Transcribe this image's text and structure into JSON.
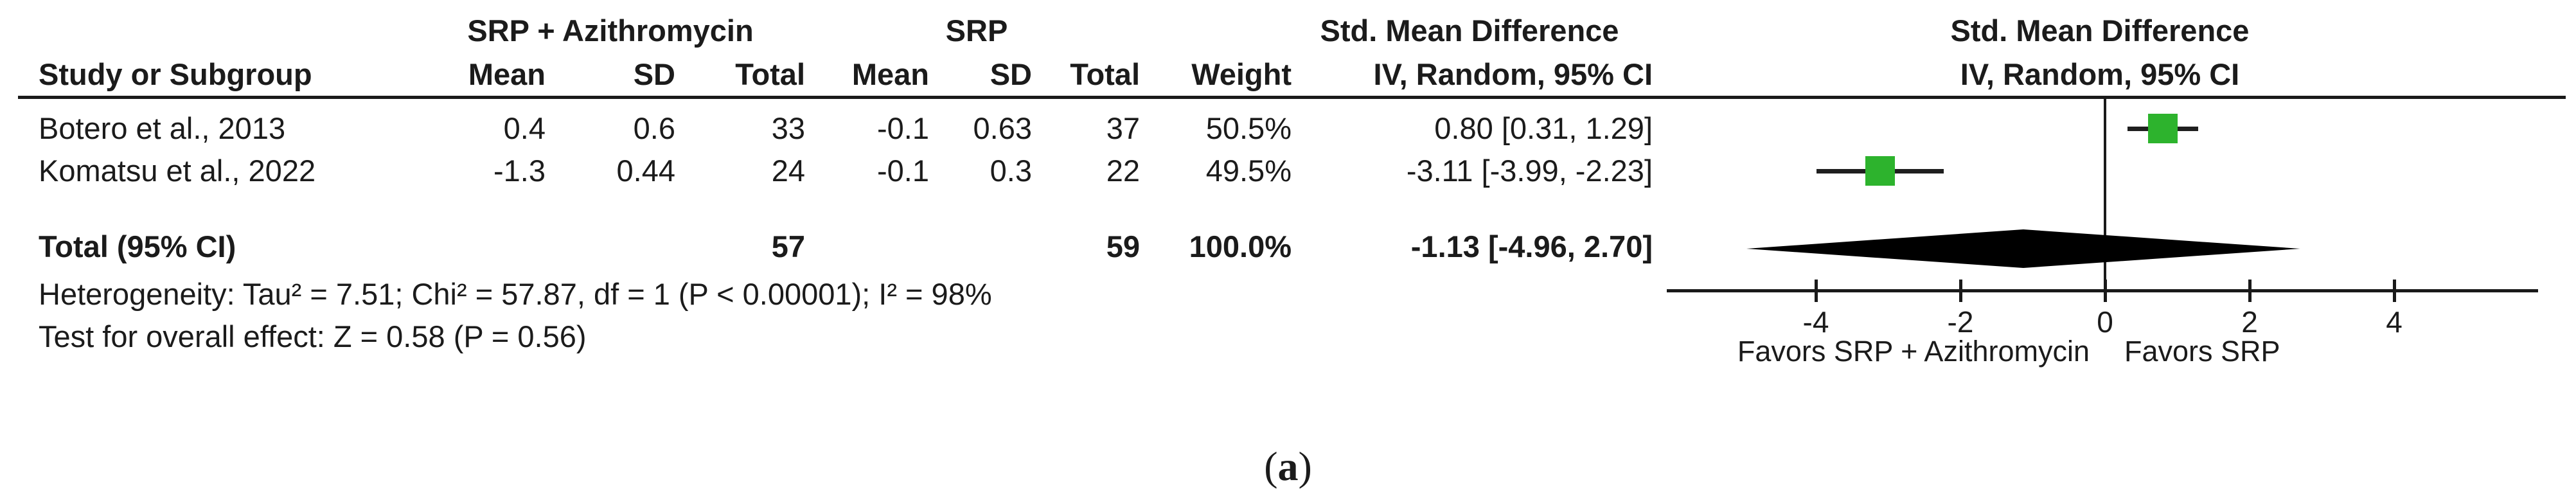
{
  "table": {
    "group_headers": {
      "experimental": "SRP + Azithromycin",
      "control": "SRP",
      "effect": "Std. Mean Difference"
    },
    "columns": {
      "study": "Study or Subgroup",
      "mean1": "Mean",
      "sd1": "SD",
      "total1": "Total",
      "mean2": "Mean",
      "sd2": "SD",
      "total2": "Total",
      "weight": "Weight",
      "ci": "IV, Random, 95% CI"
    },
    "rows": [
      {
        "study": "Botero et al., 2013",
        "mean1": "0.4",
        "sd1": "0.6",
        "total1": "33",
        "mean2": "-0.1",
        "sd2": "0.63",
        "total2": "37",
        "weight": "50.5%",
        "ci": "0.80 [0.31, 1.29]"
      },
      {
        "study": "Komatsu et al., 2022",
        "mean1": "-1.3",
        "sd1": "0.44",
        "total1": "24",
        "mean2": "-0.1",
        "sd2": "0.3",
        "total2": "22",
        "weight": "49.5%",
        "ci": "-3.11 [-3.99, -2.23]"
      }
    ],
    "total_row": {
      "label": "Total (95% CI)",
      "total1": "57",
      "total2": "59",
      "weight": "100.0%",
      "ci": "-1.13 [-4.96, 2.70]"
    },
    "heterogeneity": "Heterogeneity: Tau² = 7.51; Chi² = 57.87, df = 1 (P < 0.00001); I² = 98%",
    "overall_effect": "Test for overall effect: Z = 0.58 (P = 0.56)"
  },
  "plot": {
    "header_line1": "Std. Mean Difference",
    "header_line2": "IV, Random, 95% CI"
  },
  "caption": {
    "open": "(",
    "letter": "a",
    "close": ")"
  },
  "chart_data": {
    "type": "scatter",
    "subtype": "forest-plot",
    "title": "Std. Mean Difference",
    "subtitle": "IV, Random, 95% CI",
    "x_axis": {
      "ticks": [
        -4,
        -2,
        0,
        2,
        4
      ],
      "range": [
        -6,
        6
      ],
      "zero_line": 0,
      "grid": false
    },
    "points": [
      {
        "label": "Botero et al., 2013",
        "smd": 0.8,
        "ci": [
          0.31,
          1.29
        ],
        "weight_pct": 50.5
      },
      {
        "label": "Komatsu et al., 2022",
        "smd": -3.11,
        "ci": [
          -3.99,
          -2.23
        ],
        "weight_pct": 49.5
      }
    ],
    "diamond": {
      "label": "Total (95% CI)",
      "smd": -1.13,
      "ci": [
        -4.96,
        2.7
      ],
      "total_experimental": 57,
      "total_control": 59,
      "weight_pct": 100.0
    },
    "favors_left": "Favors SRP + Azithromycin",
    "favors_right": "Favors SRP",
    "marker_color": "#2db32d",
    "diamond_color": "#000000",
    "line_color": "#1a1a1a"
  }
}
